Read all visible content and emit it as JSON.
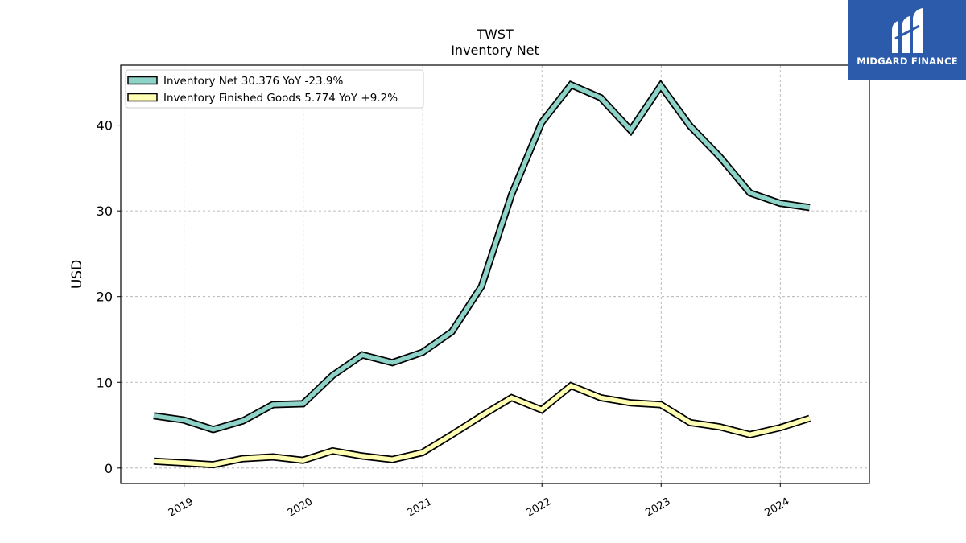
{
  "chart_data": {
    "type": "line",
    "title": "TWST",
    "subtitle": "Inventory Net",
    "ylabel": "USD",
    "xlabel": "",
    "ylim": [
      -1.8,
      47
    ],
    "yticks": [
      0,
      10,
      20,
      30,
      40
    ],
    "xlim": [
      "2018-06-21",
      "2024-09-30"
    ],
    "xticks": [
      "2019",
      "2020",
      "2021",
      "2022",
      "2023",
      "2024"
    ],
    "grid": true,
    "legend_position": "top-left",
    "x": [
      "2018-09-30",
      "2018-12-31",
      "2019-03-31",
      "2019-06-30",
      "2019-09-30",
      "2019-12-31",
      "2020-03-31",
      "2020-06-30",
      "2020-09-30",
      "2020-12-31",
      "2021-03-31",
      "2021-06-30",
      "2021-09-30",
      "2021-12-31",
      "2022-03-31",
      "2022-06-30",
      "2022-09-30",
      "2022-12-31",
      "2023-03-31",
      "2023-06-30",
      "2023-09-30",
      "2023-12-31",
      "2024-03-31"
    ],
    "series": [
      {
        "name": "Inventory Net  30.376 YoY -23.9%",
        "color": "#8dd3c7",
        "values": [
          6.1,
          5.6,
          4.5,
          5.5,
          7.4,
          7.5,
          10.8,
          13.2,
          12.3,
          13.5,
          15.9,
          21.2,
          31.9,
          40.3,
          44.7,
          43.2,
          39.4,
          44.6,
          39.9,
          36.3,
          32.1,
          30.9,
          30.4
        ]
      },
      {
        "name": "Inventory Finished Goods  5.774 YoY +9.2%",
        "color": "#ffffb3",
        "values": [
          0.8,
          0.6,
          0.4,
          1.1,
          1.3,
          0.9,
          2.0,
          1.4,
          1.0,
          1.8,
          3.9,
          6.1,
          8.2,
          6.8,
          9.6,
          8.2,
          7.6,
          7.4,
          5.3,
          4.8,
          3.9,
          4.7,
          5.8
        ]
      }
    ]
  },
  "logo": {
    "text": "MIDGARD FINANCE",
    "background": "#2d5bab"
  }
}
